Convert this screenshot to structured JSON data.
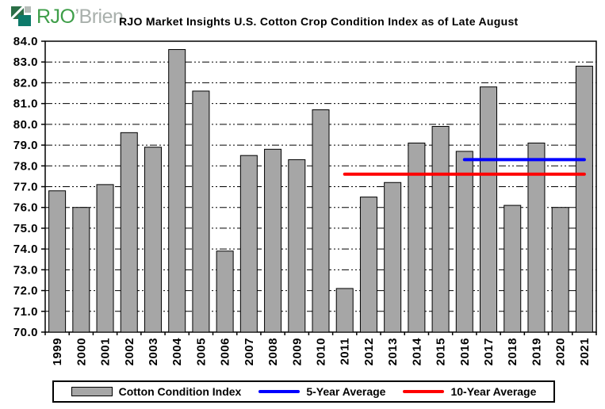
{
  "header": {
    "logo": {
      "text_primary": "RJO",
      "text_secondary": "’Brien",
      "text_primary_color": "#3E9E49",
      "text_secondary_color": "#A9B0AC",
      "icon_colors": {
        "dark_green": "#2A6E46",
        "teal": "#0D7A6A",
        "gray": "#B7BDB9"
      }
    },
    "title": "RJO Market Insights U.S. Cotton Crop Condition Index as of Late August"
  },
  "chart_data": {
    "type": "bar",
    "title": "RJO Market Insights U.S. Cotton Crop Condition Index as of Late August",
    "categories": [
      "1999",
      "2000",
      "2001",
      "2002",
      "2003",
      "2004",
      "2005",
      "2006",
      "2007",
      "2008",
      "2009",
      "2010",
      "2011",
      "2012",
      "2013",
      "2014",
      "2015",
      "2016",
      "2017",
      "2018",
      "2019",
      "2020",
      "2021"
    ],
    "values": [
      76.8,
      76.0,
      77.1,
      79.6,
      78.9,
      83.6,
      81.6,
      73.9,
      78.5,
      78.8,
      78.3,
      80.7,
      72.1,
      76.5,
      77.2,
      79.1,
      79.9,
      78.7,
      81.8,
      76.1,
      79.1,
      76.0,
      82.8
    ],
    "xlabel": "",
    "ylabel": "",
    "ylim": [
      70.0,
      84.0
    ],
    "ytick_step": 1.0,
    "ytick_label_format": "one-decimal",
    "grid": "horizontal dash-dot",
    "bar_color": "#A6A6A6",
    "bar_border_color": "#000000",
    "overlay_lines": [
      {
        "name": "5-Year Average",
        "value": 78.3,
        "color": "#0000FF",
        "from_category": "2016",
        "to_category": "2021"
      },
      {
        "name": "10-Year Average",
        "value": 77.6,
        "color": "#FF0000",
        "from_category": "2011",
        "to_category": "2021"
      }
    ],
    "legend": {
      "position": "bottom",
      "entries": [
        {
          "label": "Cotton Condition Index",
          "swatch": "bar",
          "color": "#A6A6A6"
        },
        {
          "label": "5-Year Average",
          "swatch": "line",
          "color": "#0000FF"
        },
        {
          "label": "10-Year Average",
          "swatch": "line",
          "color": "#FF0000"
        }
      ]
    }
  }
}
